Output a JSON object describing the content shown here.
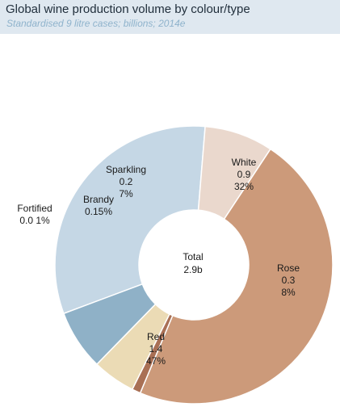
{
  "header": {
    "title": "Global wine production volume by colour/type",
    "subtitle": "Standardised 9 litre cases; billions; 2014e"
  },
  "chart_data": {
    "type": "pie",
    "variant": "donut",
    "title": "Global wine production volume by colour/type",
    "subtitle": "Standardised 9 litre cases; billions; 2014e",
    "center_label": [
      "Total",
      "2.9b"
    ],
    "slices": [
      {
        "name": "White",
        "value": 0.9,
        "percent": 32,
        "value_text": "0.9",
        "percent_text": "32%",
        "color": "#c5d7e5"
      },
      {
        "name": "Rose",
        "value": 0.3,
        "percent": 8,
        "value_text": "0.3",
        "percent_text": "8%",
        "color": "#ead8cd"
      },
      {
        "name": "Red",
        "value": 1.4,
        "percent": 47,
        "value_text": "1.4",
        "percent_text": "47%",
        "color": "#cc9a7a"
      },
      {
        "name": "Fortified",
        "value": 0.01,
        "percent": 1,
        "value_text": "0.0 1%",
        "percent_text": "",
        "color": "#a97055"
      },
      {
        "name": "Brandy",
        "value": 0.15,
        "percent": 5,
        "value_text": "0.15%",
        "percent_text": "",
        "color": "#ebdbb5"
      },
      {
        "name": "Sparkling",
        "value": 0.2,
        "percent": 7,
        "value_text": "0.2",
        "percent_text": "7%",
        "color": "#8fb1c7"
      }
    ]
  }
}
